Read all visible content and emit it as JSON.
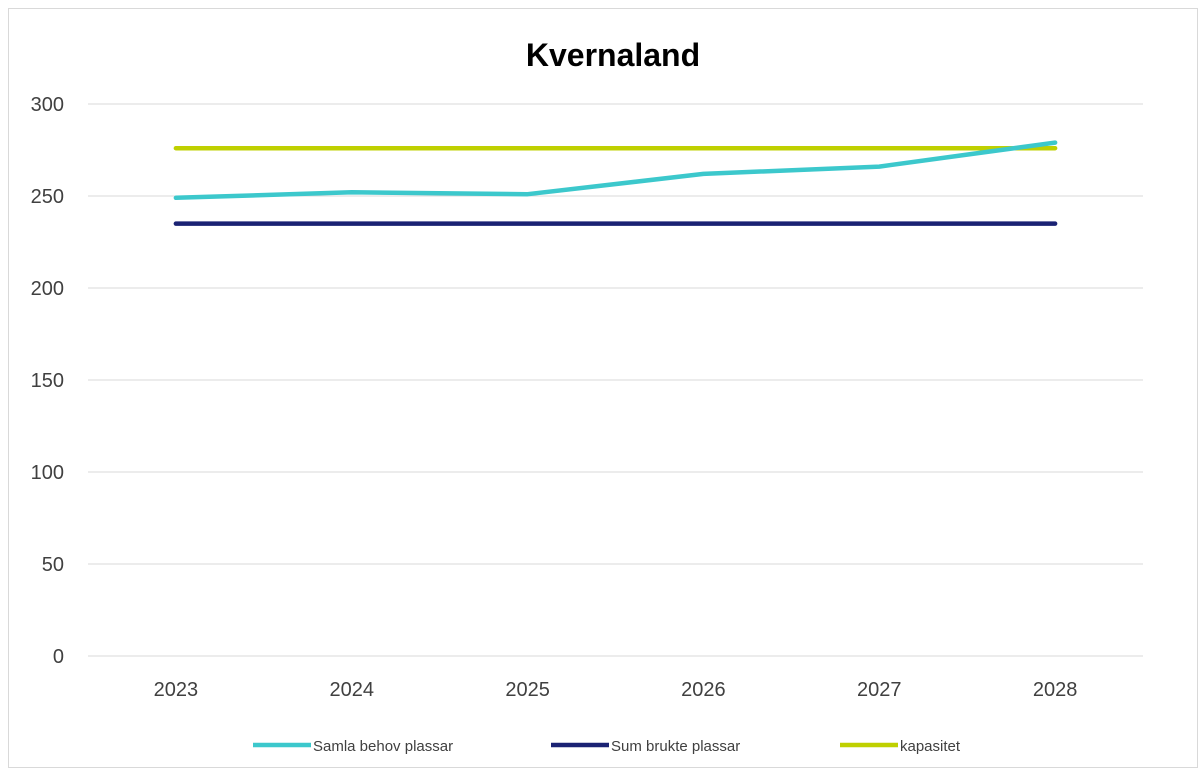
{
  "chart_data": {
    "type": "line",
    "title": "Kvernaland",
    "xlabel": "",
    "ylabel": "",
    "categories": [
      "2023",
      "2024",
      "2025",
      "2026",
      "2027",
      "2028"
    ],
    "y_ticks": [
      "0",
      "50",
      "100",
      "150",
      "200",
      "250",
      "300"
    ],
    "ylim": [
      0,
      300
    ],
    "grid": true,
    "legend_position": "bottom",
    "series": [
      {
        "name": "Samla behov plassar",
        "color": "#3cc8cc",
        "values": [
          249,
          252,
          251,
          262,
          266,
          279
        ]
      },
      {
        "name": "Sum brukte plassar",
        "color": "#1a2273",
        "values": [
          235,
          235,
          235,
          235,
          235,
          235
        ]
      },
      {
        "name": "kapasitet",
        "color": "#bfd000",
        "values": [
          276,
          276,
          276,
          276,
          276,
          276
        ]
      }
    ]
  }
}
